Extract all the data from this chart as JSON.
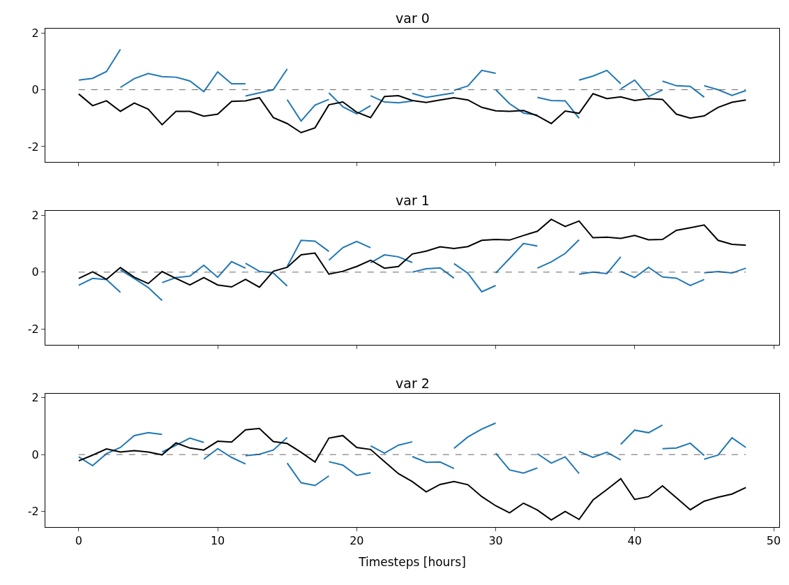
{
  "chart_data": [
    {
      "type": "line",
      "title": "var 0",
      "xlim": [
        -2.4,
        50.4
      ],
      "xticks": [
        0,
        10,
        20,
        30,
        40,
        50
      ],
      "ylim": [
        -2.55,
        2.15
      ],
      "yticks": [
        -2,
        0,
        2
      ],
      "tick_labels": "y",
      "ref_lines": [
        {
          "axis": "y",
          "value": 0,
          "color": "#404040",
          "line_style": "dashed"
        }
      ],
      "x": [
        0,
        1,
        2,
        3,
        4,
        5,
        6,
        7,
        8,
        9,
        10,
        11,
        12,
        13,
        14,
        15,
        16,
        17,
        18,
        19,
        20,
        21,
        22,
        23,
        24,
        25,
        26,
        27,
        28,
        29,
        30,
        31,
        32,
        33,
        34,
        35,
        36,
        37,
        38,
        39,
        40,
        41,
        42,
        43,
        44,
        45,
        46,
        47,
        48
      ],
      "series": [
        {
          "color": "#1f77b4",
          "x": [
            0,
            1,
            2,
            3
          ],
          "values": [
            0.34,
            0.4,
            0.64,
            1.42
          ]
        },
        {
          "color": "#1f77b4",
          "x": [
            3,
            4,
            5,
            6,
            7,
            8,
            9,
            10,
            11,
            12
          ],
          "values": [
            0.08,
            0.39,
            0.57,
            0.46,
            0.44,
            0.31,
            -0.07,
            0.63,
            0.21,
            0.21
          ]
        },
        {
          "color": "#1f77b4",
          "x": [
            12,
            13,
            14,
            15
          ],
          "values": [
            -0.22,
            -0.11,
            0.0,
            0.73
          ]
        },
        {
          "color": "#1f77b4",
          "x": [
            15,
            16,
            17,
            18
          ],
          "values": [
            -0.35,
            -1.1,
            -0.54,
            -0.34
          ]
        },
        {
          "color": "#1f77b4",
          "x": [
            18,
            19,
            20,
            21
          ],
          "values": [
            -0.11,
            -0.6,
            -0.85,
            -0.56
          ]
        },
        {
          "color": "#1f77b4",
          "x": [
            21,
            22,
            23,
            24
          ],
          "values": [
            -0.21,
            -0.43,
            -0.46,
            -0.4
          ]
        },
        {
          "color": "#1f77b4",
          "x": [
            24,
            25,
            26,
            27
          ],
          "values": [
            -0.13,
            -0.27,
            -0.19,
            -0.11
          ]
        },
        {
          "color": "#1f77b4",
          "x": [
            27,
            28,
            29,
            30
          ],
          "values": [
            -0.02,
            0.13,
            0.68,
            0.58
          ]
        },
        {
          "color": "#1f77b4",
          "x": [
            30,
            31,
            32,
            33
          ],
          "values": [
            0.0,
            -0.49,
            -0.82,
            -0.89
          ]
        },
        {
          "color": "#1f77b4",
          "x": [
            33,
            34,
            35,
            36
          ],
          "values": [
            -0.27,
            -0.38,
            -0.39,
            -1.0
          ]
        },
        {
          "color": "#1f77b4",
          "x": [
            36,
            37,
            38,
            39
          ],
          "values": [
            0.34,
            0.48,
            0.68,
            0.21
          ]
        },
        {
          "color": "#1f77b4",
          "x": [
            39,
            40,
            41,
            42
          ],
          "values": [
            0.03,
            0.34,
            -0.24,
            -0.01
          ]
        },
        {
          "color": "#1f77b4",
          "x": [
            42,
            43,
            44,
            45
          ],
          "values": [
            0.3,
            0.14,
            0.12,
            -0.26
          ]
        },
        {
          "color": "#1f77b4",
          "x": [
            45,
            46,
            47,
            48
          ],
          "values": [
            0.14,
            0.0,
            -0.2,
            -0.03
          ]
        },
        {
          "color": "#000000",
          "values": [
            -0.15,
            -0.56,
            -0.39,
            -0.76,
            -0.47,
            -0.68,
            -1.23,
            -0.76,
            -0.76,
            -0.93,
            -0.86,
            -0.41,
            -0.39,
            -0.28,
            -0.98,
            -1.19,
            -1.51,
            -1.34,
            -0.53,
            -0.43,
            -0.79,
            -0.98,
            -0.24,
            -0.21,
            -0.38,
            -0.45,
            -0.36,
            -0.28,
            -0.36,
            -0.62,
            -0.74,
            -0.76,
            -0.73,
            -0.92,
            -1.19,
            -0.75,
            -0.83,
            -0.14,
            -0.31,
            -0.25,
            -0.38,
            -0.31,
            -0.34,
            -0.86,
            -1.0,
            -0.92,
            -0.62,
            -0.44,
            -0.36
          ]
        }
      ]
    },
    {
      "type": "line",
      "title": "var 1",
      "xlim": [
        -2.4,
        50.4
      ],
      "xticks": [
        0,
        10,
        20,
        30,
        40,
        50
      ],
      "ylim": [
        -2.55,
        2.15
      ],
      "yticks": [
        -2,
        0,
        2
      ],
      "tick_labels": "y",
      "ref_lines": [
        {
          "axis": "y",
          "value": 0,
          "color": "#404040",
          "line_style": "dashed"
        }
      ],
      "x": [
        0,
        1,
        2,
        3,
        4,
        5,
        6,
        7,
        8,
        9,
        10,
        11,
        12,
        13,
        14,
        15,
        16,
        17,
        18,
        19,
        20,
        21,
        22,
        23,
        24,
        25,
        26,
        27,
        28,
        29,
        30,
        31,
        32,
        33,
        34,
        35,
        36,
        37,
        38,
        39,
        40,
        41,
        42,
        43,
        44,
        45,
        46,
        47,
        48
      ],
      "series": [
        {
          "color": "#1f77b4",
          "x": [
            0,
            1,
            2,
            3
          ],
          "values": [
            -0.46,
            -0.22,
            -0.26,
            -0.71
          ]
        },
        {
          "color": "#1f77b4",
          "x": [
            3,
            4,
            5,
            6
          ],
          "values": [
            0.08,
            -0.22,
            -0.54,
            -1.0
          ]
        },
        {
          "color": "#1f77b4",
          "x": [
            6,
            7,
            8,
            9,
            10,
            11,
            12
          ],
          "values": [
            -0.37,
            -0.19,
            -0.14,
            0.24,
            -0.18,
            0.37,
            0.14
          ]
        },
        {
          "color": "#1f77b4",
          "x": [
            12,
            13,
            14,
            15
          ],
          "values": [
            0.31,
            0.03,
            -0.03,
            -0.49
          ]
        },
        {
          "color": "#1f77b4",
          "x": [
            15,
            16,
            17,
            18
          ],
          "values": [
            0.2,
            1.12,
            1.09,
            0.73
          ]
        },
        {
          "color": "#1f77b4",
          "x": [
            18,
            19,
            20,
            21
          ],
          "values": [
            0.42,
            0.86,
            1.08,
            0.86
          ]
        },
        {
          "color": "#1f77b4",
          "x": [
            21,
            22,
            23,
            24
          ],
          "values": [
            0.33,
            0.61,
            0.54,
            0.34
          ]
        },
        {
          "color": "#1f77b4",
          "x": [
            24,
            25,
            26,
            27
          ],
          "values": [
            0.0,
            0.12,
            0.15,
            -0.21
          ]
        },
        {
          "color": "#1f77b4",
          "x": [
            27,
            28,
            29,
            30
          ],
          "values": [
            0.3,
            -0.04,
            -0.69,
            -0.47
          ]
        },
        {
          "color": "#1f77b4",
          "x": [
            30,
            31,
            32,
            33
          ],
          "values": [
            -0.03,
            0.48,
            1.01,
            0.92
          ]
        },
        {
          "color": "#1f77b4",
          "x": [
            33,
            34,
            35,
            36
          ],
          "values": [
            0.14,
            0.36,
            0.66,
            1.14
          ]
        },
        {
          "color": "#1f77b4",
          "x": [
            36,
            37,
            38,
            39
          ],
          "values": [
            -0.07,
            0.0,
            -0.05,
            0.54
          ]
        },
        {
          "color": "#1f77b4",
          "x": [
            39,
            40,
            41,
            42
          ],
          "values": [
            0.03,
            -0.19,
            0.17,
            -0.17
          ]
        },
        {
          "color": "#1f77b4",
          "x": [
            42,
            43,
            44,
            45
          ],
          "values": [
            -0.17,
            -0.21,
            -0.47,
            -0.26
          ]
        },
        {
          "color": "#1f77b4",
          "x": [
            45,
            46,
            47,
            48
          ],
          "values": [
            -0.02,
            0.02,
            -0.03,
            0.14
          ]
        },
        {
          "color": "#000000",
          "values": [
            -0.22,
            0.01,
            -0.25,
            0.16,
            -0.18,
            -0.4,
            0.02,
            -0.22,
            -0.45,
            -0.19,
            -0.45,
            -0.52,
            -0.25,
            -0.53,
            0.03,
            0.17,
            0.61,
            0.67,
            -0.07,
            0.03,
            0.2,
            0.42,
            0.14,
            0.2,
            0.64,
            0.74,
            0.89,
            0.83,
            0.9,
            1.12,
            1.15,
            1.13,
            1.29,
            1.44,
            1.86,
            1.61,
            1.8,
            1.21,
            1.23,
            1.19,
            1.29,
            1.14,
            1.15,
            1.47,
            1.56,
            1.66,
            1.12,
            0.98,
            0.95
          ]
        }
      ]
    },
    {
      "type": "line",
      "title": "var 2",
      "xlabel": "Timesteps [hours]",
      "xlim": [
        -2.4,
        50.4
      ],
      "xticks": [
        0,
        10,
        20,
        30,
        40,
        50
      ],
      "ylim": [
        -2.55,
        2.15
      ],
      "yticks": [
        -2,
        0,
        2
      ],
      "ref_lines": [
        {
          "axis": "y",
          "value": 0,
          "color": "#404040",
          "line_style": "dashed"
        }
      ],
      "x": [
        0,
        1,
        2,
        3,
        4,
        5,
        6,
        7,
        8,
        9,
        10,
        11,
        12,
        13,
        14,
        15,
        16,
        17,
        18,
        19,
        20,
        21,
        22,
        23,
        24,
        25,
        26,
        27,
        28,
        29,
        30,
        31,
        32,
        33,
        34,
        35,
        36,
        37,
        38,
        39,
        40,
        41,
        42,
        43,
        44,
        45,
        46,
        47,
        48
      ],
      "series": [
        {
          "color": "#1f77b4",
          "x": [
            0,
            1,
            2,
            3,
            4,
            5,
            6
          ],
          "values": [
            -0.08,
            -0.39,
            0.03,
            0.25,
            0.67,
            0.77,
            0.71
          ]
        },
        {
          "color": "#1f77b4",
          "x": [
            6,
            7,
            8,
            9
          ],
          "values": [
            0.09,
            0.33,
            0.58,
            0.43
          ]
        },
        {
          "color": "#1f77b4",
          "x": [
            9,
            10,
            11,
            12
          ],
          "values": [
            -0.16,
            0.21,
            -0.1,
            -0.33
          ]
        },
        {
          "color": "#1f77b4",
          "x": [
            12,
            13,
            14,
            15
          ],
          "values": [
            -0.04,
            0.01,
            0.16,
            0.6
          ]
        },
        {
          "color": "#1f77b4",
          "x": [
            15,
            16,
            17,
            18
          ],
          "values": [
            -0.3,
            -0.99,
            -1.09,
            -0.75
          ]
        },
        {
          "color": "#1f77b4",
          "x": [
            18,
            19,
            20,
            21
          ],
          "values": [
            -0.25,
            -0.37,
            -0.73,
            -0.64
          ]
        },
        {
          "color": "#1f77b4",
          "x": [
            21,
            22,
            23,
            24
          ],
          "values": [
            0.31,
            0.05,
            0.33,
            0.45
          ]
        },
        {
          "color": "#1f77b4",
          "x": [
            24,
            25,
            26,
            27
          ],
          "values": [
            -0.07,
            -0.27,
            -0.26,
            -0.49
          ]
        },
        {
          "color": "#1f77b4",
          "x": [
            27,
            28,
            29,
            30
          ],
          "values": [
            0.22,
            0.62,
            0.9,
            1.11
          ]
        },
        {
          "color": "#1f77b4",
          "x": [
            30,
            31,
            32,
            33
          ],
          "values": [
            0.05,
            -0.54,
            -0.65,
            -0.47
          ]
        },
        {
          "color": "#1f77b4",
          "x": [
            33,
            34,
            35,
            36
          ],
          "values": [
            0.03,
            -0.3,
            -0.08,
            -0.67
          ]
        },
        {
          "color": "#1f77b4",
          "x": [
            36,
            37,
            38,
            39
          ],
          "values": [
            0.11,
            -0.1,
            0.08,
            -0.19
          ]
        },
        {
          "color": "#1f77b4",
          "x": [
            39,
            40,
            41,
            42
          ],
          "values": [
            0.36,
            0.86,
            0.77,
            1.04
          ]
        },
        {
          "color": "#1f77b4",
          "x": [
            42,
            43,
            44,
            45
          ],
          "values": [
            0.21,
            0.23,
            0.4,
            -0.03
          ]
        },
        {
          "color": "#1f77b4",
          "x": [
            45,
            46,
            47,
            48
          ],
          "values": [
            -0.16,
            -0.02,
            0.59,
            0.25
          ]
        },
        {
          "color": "#000000",
          "values": [
            -0.22,
            -0.02,
            0.2,
            0.09,
            0.14,
            0.09,
            -0.01,
            0.41,
            0.23,
            0.16,
            0.47,
            0.44,
            0.87,
            0.92,
            0.46,
            0.39,
            0.08,
            -0.26,
            0.58,
            0.67,
            0.25,
            0.18,
            -0.25,
            -0.67,
            -0.95,
            -1.31,
            -1.05,
            -0.95,
            -1.06,
            -1.48,
            -1.8,
            -2.05,
            -1.71,
            -1.95,
            -2.3,
            -2.0,
            -2.28,
            -1.6,
            -1.23,
            -0.85,
            -1.58,
            -1.48,
            -1.1,
            -1.52,
            -1.94,
            -1.64,
            -1.5,
            -1.39,
            -1.16
          ]
        }
      ]
    }
  ]
}
